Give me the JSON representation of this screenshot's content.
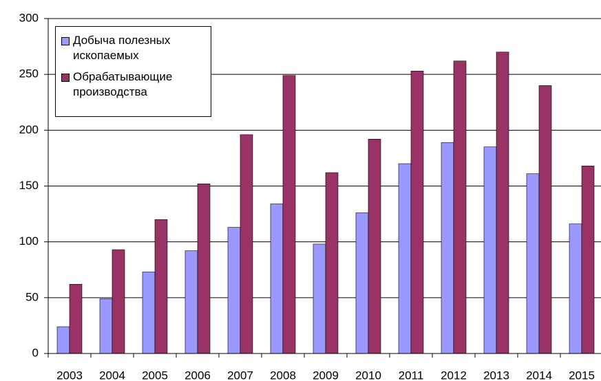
{
  "chart_data": {
    "type": "bar",
    "categories": [
      "2003",
      "2004",
      "2005",
      "2006",
      "2007",
      "2008",
      "2009",
      "2010",
      "2011",
      "2012",
      "2013",
      "2014",
      "2015"
    ],
    "series": [
      {
        "name": "Добыча полезных ископаемых",
        "color": "#9999ff",
        "values": [
          24,
          49,
          73,
          92,
          113,
          134,
          98,
          126,
          170,
          189,
          185,
          161,
          116
        ]
      },
      {
        "name": "Обрабатывающие производства",
        "color": "#993366",
        "values": [
          62,
          93,
          120,
          152,
          196,
          249,
          162,
          192,
          253,
          262,
          270,
          240,
          168
        ]
      }
    ],
    "ylim": [
      0,
      300
    ],
    "yticks": [
      0,
      50,
      100,
      150,
      200,
      250,
      300
    ],
    "grid": true,
    "legend": "upper left"
  }
}
